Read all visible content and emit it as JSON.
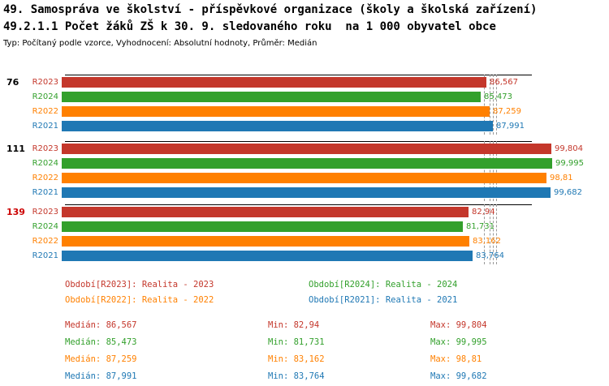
{
  "header": {
    "title1": "49. Samospráva ve školství - příspěvkové organizace (školy a školská zařízení)",
    "title2": "49.2.1.1 Počet žáků ZŠ k 30. 9. sledovaného roku  na 1 000 obyvatel obce",
    "subtitle": "Typ: Počítaný podle vzorce, Vyhodnocení: Absolutní hodnoty, Průměr: Medián"
  },
  "colors": {
    "R2023": "#c4372b",
    "R2024": "#33a02c",
    "R2022": "#ff8000",
    "R2021": "#1f78b4",
    "group_label_default": "#000000",
    "group_label_alert": "#cc0000",
    "median_line": "#999999",
    "axis_line": "#000000"
  },
  "chart_data": {
    "type": "bar",
    "orientation": "horizontal",
    "xlim": [
      0,
      100
    ],
    "grid": false,
    "legend_position": "bottom",
    "series_names": [
      "R2023",
      "R2024",
      "R2022",
      "R2021"
    ],
    "groups": [
      {
        "label": "76",
        "label_color": "#000000",
        "bars": [
          {
            "series": "R2023",
            "value": 86.567,
            "display": "86,567"
          },
          {
            "series": "R2024",
            "value": 85.473,
            "display": "85,473"
          },
          {
            "series": "R2022",
            "value": 87.259,
            "display": "87,259"
          },
          {
            "series": "R2021",
            "value": 87.991,
            "display": "87,991"
          }
        ]
      },
      {
        "label": "111",
        "label_color": "#000000",
        "bars": [
          {
            "series": "R2023",
            "value": 99.804,
            "display": "99,804"
          },
          {
            "series": "R2024",
            "value": 99.995,
            "display": "99,995"
          },
          {
            "series": "R2022",
            "value": 98.81,
            "display": "98,81"
          },
          {
            "series": "R2021",
            "value": 99.682,
            "display": "99,682"
          }
        ]
      },
      {
        "label": "139",
        "label_color": "#cc0000",
        "bars": [
          {
            "series": "R2023",
            "value": 82.94,
            "display": "82,94"
          },
          {
            "series": "R2024",
            "value": 81.731,
            "display": "81,731"
          },
          {
            "series": "R2022",
            "value": 83.162,
            "display": "83,162"
          },
          {
            "series": "R2021",
            "value": 83.764,
            "display": "83,764"
          }
        ]
      }
    ],
    "median_markers": [
      86.567,
      85.473,
      87.259,
      87.991
    ]
  },
  "legend": [
    {
      "series": "R2023",
      "text": "Období[R2023]: Realita - 2023"
    },
    {
      "series": "R2024",
      "text": "Období[R2024]: Realita - 2024"
    },
    {
      "series": "R2022",
      "text": "Období[R2022]: Realita - 2022"
    },
    {
      "series": "R2021",
      "text": "Období[R2021]: Realita - 2021"
    }
  ],
  "stats": {
    "median_label": "Medián",
    "min_label": "Min",
    "max_label": "Max",
    "rows": [
      {
        "series": "R2023",
        "median": "86,567",
        "min": "82,94",
        "max": "99,804"
      },
      {
        "series": "R2024",
        "median": "85,473",
        "min": "81,731",
        "max": "99,995"
      },
      {
        "series": "R2022",
        "median": "87,259",
        "min": "83,162",
        "max": "98,81"
      },
      {
        "series": "R2021",
        "median": "87,991",
        "min": "83,764",
        "max": "99,682"
      }
    ]
  }
}
